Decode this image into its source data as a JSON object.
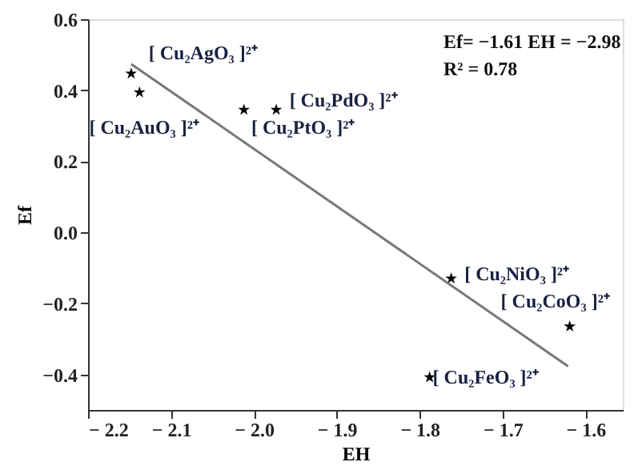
{
  "chart_data": {
    "type": "scatter",
    "xlabel": "EH",
    "ylabel": "Ef",
    "xlim": [
      -2.2,
      -1.555
    ],
    "xticks": [
      {
        "value": -2.2,
        "label": "− 2.2"
      },
      {
        "value": -2.1,
        "label": "− 2.1"
      },
      {
        "value": -2.0,
        "label": "− 2.0"
      },
      {
        "value": -1.9,
        "label": "− 1.9"
      },
      {
        "value": -1.8,
        "label": "− 1.8"
      },
      {
        "value": -1.7,
        "label": "− 1.7"
      },
      {
        "value": -1.6,
        "label": "− 1.6"
      }
    ],
    "ylim": [
      -0.5,
      0.6
    ],
    "yticks": [
      {
        "value": -0.4,
        "label": "−0.4"
      },
      {
        "value": -0.2,
        "label": "−0.2"
      },
      {
        "value": 0,
        "label": "0.0"
      },
      {
        "value": 0.2,
        "label": "0.2"
      },
      {
        "value": 0.4,
        "label": "0.4"
      },
      {
        "value": 0.6,
        "label": "0.6"
      }
    ],
    "grid": false,
    "series": [
      {
        "color": "#000000",
        "marker": "star",
        "x": [
          -2.148,
          -2.138,
          -2.012,
          -1.973,
          -1.762,
          -1.619,
          -1.788
        ],
        "values": [
          0.447,
          0.394,
          0.345,
          0.345,
          -0.13,
          -0.265,
          -0.408
        ]
      },
      {
        "type": "line",
        "color": "#777777",
        "x": [
          -2.148,
          -1.621
        ],
        "values": [
          0.474,
          -0.377
        ]
      }
    ],
    "annotations": [
      "Ef= −1.61  EH = −2.98",
      "R² = 0.78",
      {
        "text": "[ Cu₂AgO₃ ]²⁺",
        "x": -2.148,
        "y": 0.447
      },
      {
        "text": "[ Cu₂AuO₃ ]²⁺",
        "x": -2.138,
        "y": 0.394
      },
      {
        "text": "[ Cu₂PtO₃ ]²⁺",
        "x": -2.012,
        "y": 0.345
      },
      {
        "text": "[ Cu₂PdO₃ ]²⁺",
        "x": -1.973,
        "y": 0.345
      },
      {
        "text": "[ Cu₂NiO₃ ]²⁺",
        "x": -1.762,
        "y": -0.13
      },
      {
        "text": "[ Cu₂CoO₃ ]²⁺",
        "x": -1.619,
        "y": -0.265
      },
      {
        "text": "[ Cu₂FeO₃ ]²⁺",
        "x": -1.788,
        "y": -0.408
      }
    ]
  }
}
